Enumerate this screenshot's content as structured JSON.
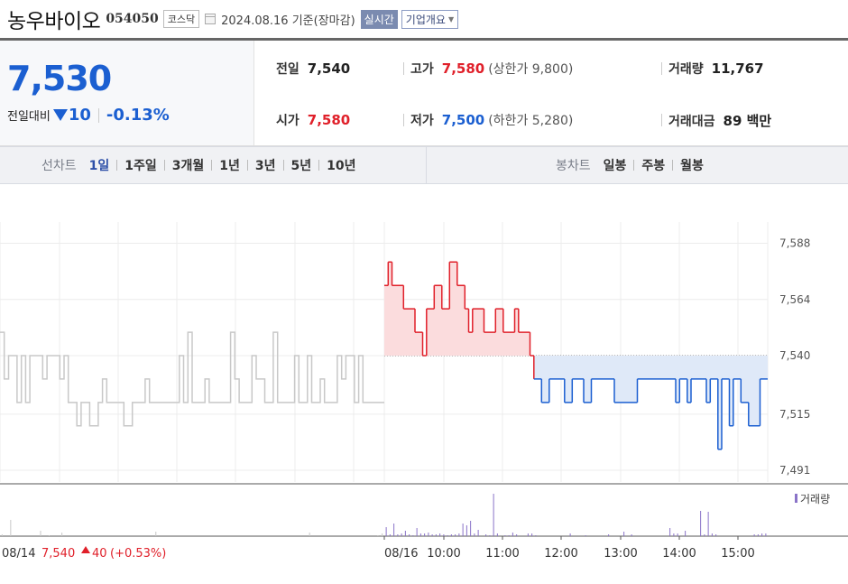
{
  "header": {
    "company": "농우바이오",
    "code": "054050",
    "market": "코스닥",
    "date": "2024.08.16",
    "basis": "기준(장마감)",
    "realtime_label": "실시간",
    "company_info_label": "기업개요"
  },
  "price": {
    "current": "7,530",
    "change_label": "전일대비",
    "change": "10",
    "rate": "-0.13%"
  },
  "stats": {
    "prev_label": "전일",
    "prev": "7,540",
    "high_label": "고가",
    "high": "7,580",
    "upper_limit": "(상한가 9,800)",
    "volume_label": "거래량",
    "volume": "11,767",
    "open_label": "시가",
    "open": "7,580",
    "low_label": "저가",
    "low": "7,500",
    "lower_limit": "(하한가 5,280)",
    "amount_label": "거래대금",
    "amount": "89 백만"
  },
  "periods": {
    "label": "선차트",
    "items": [
      "1일",
      "1주일",
      "3개월",
      "1년",
      "3년",
      "5년",
      "10년"
    ],
    "active": "1일"
  },
  "candles": {
    "label": "봉차트",
    "items": [
      "일봉",
      "주봉",
      "월봉"
    ]
  },
  "colors": {
    "up": "#e0202a",
    "down": "#1b5fd1",
    "prev_day_line": "#c8c8c8"
  },
  "chart_data": {
    "type": "line",
    "y_ticks": [
      "7,588",
      "7,564",
      "7,540",
      "7,515",
      "7,491"
    ],
    "y_tick_values": [
      7588,
      7564,
      7540,
      7515,
      7491
    ],
    "ylim": [
      7486,
      7594
    ],
    "x_ticks": [
      "08/14",
      "08/16",
      "10:00",
      "11:00",
      "12:00",
      "13:00",
      "14:00",
      "15:00"
    ],
    "reference_price": 7540,
    "volume_label": "거래량",
    "prev_day": {
      "date": "08/14",
      "close_text": "7,540",
      "change_text": "40",
      "rate_text": "(+0.53%)",
      "values": [
        7550,
        7530,
        7540,
        7540,
        7520,
        7540,
        7520,
        7540,
        7540,
        7540,
        7530,
        7540,
        7540,
        7540,
        7530,
        7540,
        7520,
        7520,
        7510,
        7520,
        7520,
        7510,
        7510,
        7520,
        7530,
        7520,
        7520,
        7520,
        7520,
        7510,
        7510,
        7520,
        7520,
        7520,
        7530,
        7520,
        7520,
        7520,
        7520,
        7520,
        7520,
        7520,
        7540,
        7520,
        7550,
        7520,
        7520,
        7520,
        7530,
        7520,
        7520,
        7520,
        7520,
        7520,
        7550,
        7530,
        7520,
        7520,
        7520,
        7540,
        7530,
        7530,
        7520,
        7520,
        7550,
        7520,
        7520,
        7520,
        7520,
        7540,
        7520,
        7520,
        7540,
        7520,
        7520,
        7530,
        7520,
        7520,
        7520,
        7540,
        7530,
        7540,
        7540,
        7520,
        7540,
        7520,
        7520,
        7520,
        7520,
        7520
      ]
    },
    "today": {
      "date": "08/16",
      "values": [
        7570,
        7580,
        7570,
        7570,
        7570,
        7560,
        7560,
        7560,
        7550,
        7550,
        7540,
        7560,
        7560,
        7570,
        7570,
        7560,
        7560,
        7580,
        7580,
        7570,
        7570,
        7560,
        7550,
        7560,
        7560,
        7560,
        7550,
        7550,
        7550,
        7560,
        7560,
        7550,
        7550,
        7550,
        7560,
        7550,
        7550,
        7550,
        7540,
        7530,
        7530,
        7520,
        7520,
        7530,
        7530,
        7530,
        7530,
        7520,
        7520,
        7530,
        7530,
        7530,
        7520,
        7520,
        7530,
        7530,
        7530,
        7530,
        7530,
        7530,
        7520,
        7520,
        7520,
        7520,
        7520,
        7520,
        7530,
        7530,
        7530,
        7530,
        7530,
        7530,
        7530,
        7530,
        7530,
        7530,
        7520,
        7530,
        7530,
        7520,
        7530,
        7530,
        7530,
        7530,
        7520,
        7530,
        7530,
        7500,
        7530,
        7530,
        7510,
        7530,
        7530,
        7520,
        7520,
        7510,
        7510,
        7510,
        7530,
        7530
      ]
    },
    "volumes": {
      "prev_day": [
        2,
        0,
        18,
        0,
        0,
        0,
        0,
        0,
        0,
        6,
        0,
        1,
        0,
        0,
        4,
        0,
        0,
        0,
        0,
        0,
        0,
        0,
        0,
        0,
        0,
        0,
        0,
        0,
        0,
        0,
        0,
        0,
        0,
        0,
        0,
        0,
        5,
        0,
        0,
        0,
        0,
        0,
        0,
        0,
        0,
        0,
        0,
        0,
        0,
        0,
        0,
        0,
        0,
        0,
        0,
        0,
        0,
        0,
        0,
        0,
        0,
        0,
        0,
        0,
        0,
        0,
        0,
        0,
        0,
        0,
        0,
        0,
        4,
        0,
        0,
        0,
        0,
        0,
        0,
        0,
        0,
        0,
        0,
        0,
        0,
        0,
        0,
        0,
        1,
        3
      ],
      "today": [
        10,
        2,
        14,
        2,
        3,
        6,
        2,
        1,
        9,
        3,
        3,
        4,
        2,
        2,
        3,
        2,
        1,
        2,
        2,
        3,
        14,
        12,
        17,
        3,
        7,
        0,
        2,
        1,
        47,
        3,
        0,
        1,
        1,
        4,
        2,
        0,
        0,
        3,
        3,
        1,
        0,
        0,
        0,
        0,
        0,
        0,
        0,
        0,
        3,
        0,
        0,
        0,
        1,
        0,
        0,
        0,
        0,
        0,
        2,
        0,
        0,
        0,
        5,
        0,
        2,
        0,
        0,
        0,
        0,
        0,
        0,
        0,
        0,
        0,
        9,
        3,
        3,
        0,
        6,
        0,
        0,
        0,
        28,
        2,
        27,
        3,
        2,
        0,
        0,
        0,
        0,
        0,
        0,
        0,
        0,
        0,
        2,
        2,
        3,
        3
      ]
    }
  }
}
